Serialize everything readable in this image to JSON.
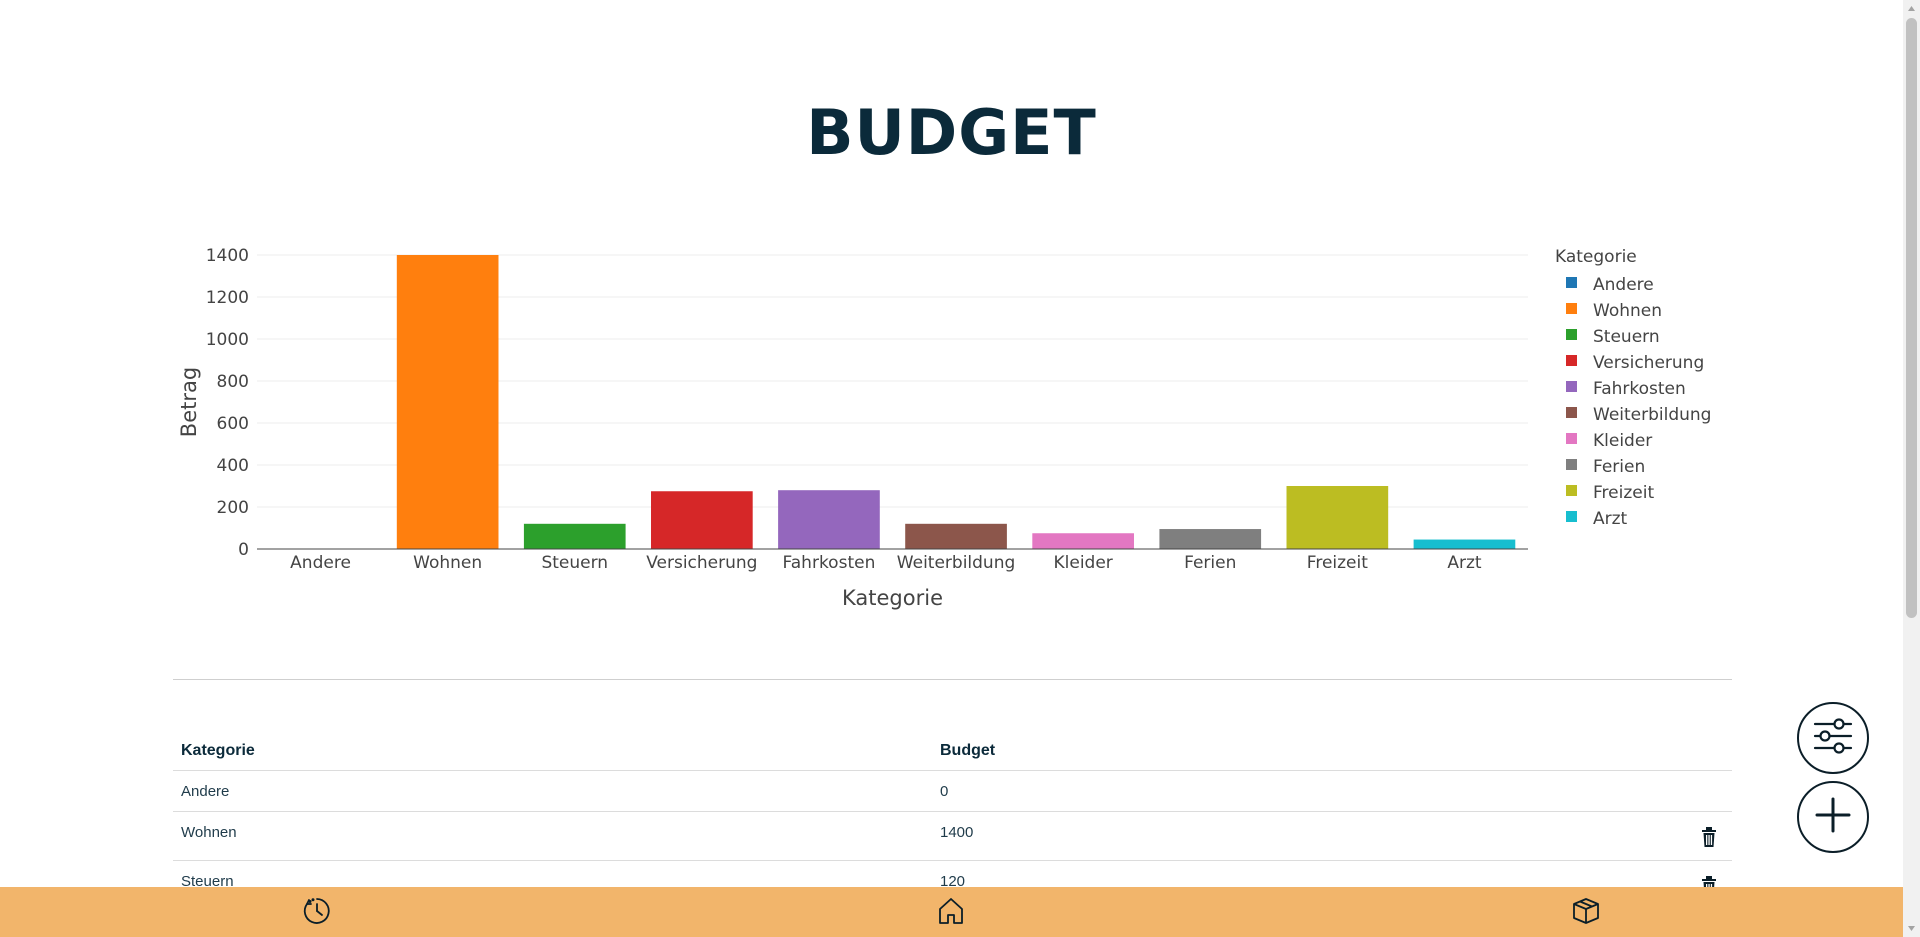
{
  "page": {
    "title": "BUDGET"
  },
  "chart_data": {
    "type": "bar",
    "categories": [
      "Andere",
      "Wohnen",
      "Steuern",
      "Versicherung",
      "Fahrkosten",
      "Weiterbildung",
      "Kleider",
      "Ferien",
      "Freizeit",
      "Arzt"
    ],
    "values": [
      0,
      1400,
      120,
      275,
      280,
      120,
      75,
      95,
      300,
      45
    ],
    "colors": [
      "#1f77b4",
      "#ff7f0e",
      "#2ca02c",
      "#d62728",
      "#9467bd",
      "#8c564b",
      "#e377c2",
      "#7f7f7f",
      "#bcbd22",
      "#17becf"
    ],
    "xlabel": "Kategorie",
    "ylabel": "Betrag",
    "ylim": [
      0,
      1400
    ],
    "yticks": [
      0,
      200,
      400,
      600,
      800,
      1000,
      1200,
      1400
    ],
    "legend_title": "Kategorie",
    "legend_position": "right",
    "grid": true
  },
  "table": {
    "headers": {
      "category": "Kategorie",
      "budget": "Budget"
    },
    "rows": [
      {
        "category": "Andere",
        "budget": "0"
      },
      {
        "category": "Wohnen",
        "budget": "1400"
      },
      {
        "category": "Steuern",
        "budget": "120"
      }
    ]
  },
  "icons": {
    "filter": "sliders-icon",
    "add": "plus-icon",
    "delete": "trash-icon",
    "nav_history": "clock-icon",
    "nav_home": "home-icon",
    "nav_box": "box-icon"
  },
  "colors": {
    "accent": "#f2b56b",
    "title": "#0b2a3a"
  }
}
